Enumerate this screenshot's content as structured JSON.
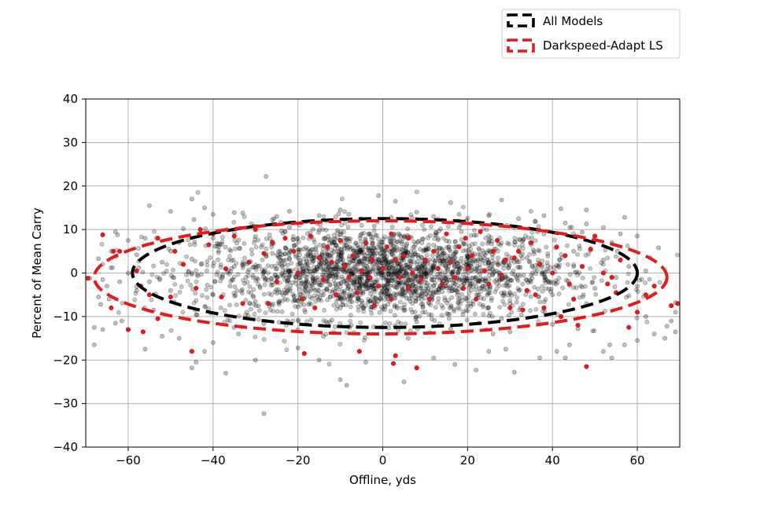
{
  "chart_data": {
    "type": "scatter",
    "xlabel": "Offline, yds",
    "ylabel": "Percent of Mean Carry",
    "xlim": [
      -70,
      70
    ],
    "ylim": [
      -40,
      40
    ],
    "x_ticks": [
      -60,
      -40,
      -20,
      0,
      20,
      40,
      60
    ],
    "x_tick_labels": [
      "−60",
      "−40",
      "−20",
      "0",
      "20",
      "40",
      "60"
    ],
    "y_ticks": [
      -40,
      -30,
      -20,
      -10,
      0,
      10,
      20,
      30,
      40
    ],
    "y_tick_labels": [
      "−40",
      "−30",
      "−20",
      "−10",
      "0",
      "10",
      "20",
      "30",
      "40"
    ],
    "grid": true,
    "legend_position": "top-right, above plot",
    "series": [
      {
        "name": "All Models",
        "color": "#000000",
        "ellipse": {
          "center": [
            0.5,
            0
          ],
          "semi_axis_x": 59.5,
          "semi_axis_y": 12.5
        },
        "point_count_approx": 2500,
        "points": [
          [
            -27.5,
            22.2
          ],
          [
            -28,
            -32.3
          ],
          [
            -8.5,
            -25.8
          ],
          [
            -10,
            -24.5
          ],
          [
            5,
            -25
          ],
          [
            -44,
            -20.5
          ],
          [
            -45,
            -21.8
          ],
          [
            -37,
            -23
          ],
          [
            -30,
            -20
          ],
          [
            -56,
            -17.5
          ],
          [
            -57.5,
            1.2
          ],
          [
            -55,
            15.5
          ],
          [
            -45,
            17
          ],
          [
            -63,
            9.5
          ],
          [
            -68,
            -16.5
          ],
          [
            -66,
            -13
          ],
          [
            -60,
            -13
          ],
          [
            22,
            -22.3
          ],
          [
            31,
            -22.8
          ],
          [
            17,
            -21
          ],
          [
            -1,
            17.8
          ],
          [
            3,
            16.5
          ],
          [
            16,
            16.2
          ],
          [
            28,
            16.8
          ],
          [
            42,
            14.8
          ],
          [
            48,
            14.5
          ],
          [
            57,
            12.8
          ],
          [
            -22,
            14.2
          ],
          [
            -10,
            14.5
          ],
          [
            -68,
            -12.5
          ],
          [
            -61.5,
            -11
          ],
          [
            -63,
            -11.5
          ],
          [
            -66.5,
            -7.2
          ],
          [
            -69,
            -1.2
          ],
          [
            69,
            -6.8
          ],
          [
            69,
            -9
          ],
          [
            69,
            -13.5
          ],
          [
            66.5,
            -15
          ],
          [
            60,
            -15.5
          ],
          [
            57,
            -16.5
          ],
          [
            53.5,
            -16.5
          ],
          [
            52,
            -18
          ],
          [
            54,
            -19.5
          ],
          [
            64,
            -14
          ],
          [
            67,
            -12.2
          ],
          [
            68,
            -11
          ],
          [
            62,
            -10
          ],
          [
            63,
            3.5
          ],
          [
            65,
            5.8
          ],
          [
            60,
            8.5
          ],
          [
            56,
            9
          ],
          [
            55.3,
            5
          ],
          [
            58,
            1.5
          ],
          [
            -62.5,
            8.8
          ],
          [
            -60,
            7.5
          ],
          [
            -50,
            14.2
          ],
          [
            -42,
            15
          ],
          [
            -44.5,
            12.3
          ],
          [
            -40,
            13.5
          ],
          [
            -35,
            13.9
          ],
          [
            -33,
            13.8
          ],
          [
            -25,
            13
          ],
          [
            -15,
            13.2
          ],
          [
            -8,
            13.5
          ],
          [
            8,
            14
          ],
          [
            12,
            13
          ],
          [
            18,
            13.5
          ],
          [
            25,
            13.2
          ],
          [
            32,
            12.5
          ],
          [
            38,
            13.2
          ],
          [
            43,
            11.5
          ],
          [
            48,
            11.3
          ],
          [
            52,
            10.5
          ],
          [
            41,
            -18
          ],
          [
            43,
            -19.5
          ],
          [
            37,
            -19.5
          ],
          [
            29,
            -17.5
          ],
          [
            25,
            -18
          ],
          [
            44,
            -16.5
          ],
          [
            12,
            -19.5
          ],
          [
            -4,
            -20.5
          ],
          [
            -15,
            -20
          ],
          [
            -20,
            -17.2
          ],
          [
            -34,
            -14
          ],
          [
            -40,
            -16
          ],
          [
            -42,
            -18
          ],
          [
            -48,
            -15
          ],
          [
            -52,
            -14.5
          ],
          [
            -64.5,
            -6
          ],
          [
            -67,
            -5.5
          ],
          [
            -65,
            -3
          ],
          [
            -62,
            -2
          ],
          [
            -62.8,
            3.8
          ],
          [
            -64,
            5
          ],
          [
            -67,
            3.3
          ],
          [
            -50,
            5
          ],
          [
            -45,
            3.2
          ],
          [
            -38,
            6.6
          ],
          [
            -30,
            8.4
          ],
          [
            -20,
            8
          ],
          [
            -10,
            7.5
          ],
          [
            -5,
            9
          ],
          [
            5,
            8.5
          ],
          [
            15,
            7.4
          ],
          [
            25,
            7.2
          ],
          [
            35,
            6.5
          ],
          [
            45,
            5
          ],
          [
            -50,
            -4
          ],
          [
            -40,
            -5
          ],
          [
            -30,
            -6.5
          ],
          [
            -20,
            -7.8
          ],
          [
            -10,
            -8
          ],
          [
            0,
            -8.3
          ],
          [
            10,
            -9
          ],
          [
            20,
            -7.6
          ],
          [
            30,
            -7
          ],
          [
            40,
            -5
          ],
          [
            50,
            -3.5
          ],
          [
            -45,
            0
          ],
          [
            -35,
            1.5
          ],
          [
            -25,
            -1
          ],
          [
            -15,
            2.5
          ],
          [
            -5,
            -2.5
          ],
          [
            5,
            3
          ],
          [
            15,
            -1.5
          ],
          [
            25,
            2
          ],
          [
            35,
            -0.5
          ],
          [
            45,
            1.5
          ],
          [
            -40,
            8
          ],
          [
            -32,
            -9
          ],
          [
            -22,
            10.5
          ],
          [
            -12,
            -10.8
          ],
          [
            -2,
            10.8
          ],
          [
            8,
            -11.2
          ],
          [
            18,
            10.5
          ],
          [
            28,
            -10.5
          ],
          [
            38,
            9
          ],
          [
            -55,
            -2
          ],
          [
            -52,
            2.5
          ],
          [
            55,
            -1
          ],
          [
            52,
            3
          ],
          [
            -48,
            7
          ],
          [
            48,
            -7
          ],
          [
            -36,
            -3
          ],
          [
            -26,
            4.5
          ],
          [
            -16,
            -4
          ],
          [
            -6,
            4
          ],
          [
            4,
            -4.5
          ],
          [
            14,
            4.2
          ],
          [
            24,
            -3.8
          ],
          [
            34,
            3.5
          ],
          [
            44,
            -2.8
          ],
          [
            -58,
            4.2
          ],
          [
            -58,
            -4
          ],
          [
            -56,
            8
          ],
          [
            -54,
            -8.5
          ],
          [
            58,
            -5.2
          ],
          [
            60,
            -3
          ],
          [
            62,
            0.5
          ],
          [
            -20,
            -13
          ],
          [
            -14,
            -14.5
          ],
          [
            6,
            -15
          ],
          [
            26,
            -14
          ],
          [
            -26,
            12.3
          ],
          [
            2,
            12.8
          ],
          [
            20,
            12.6
          ],
          [
            36,
            11.8
          ],
          [
            -66,
            -1.5
          ],
          [
            -60,
            0
          ],
          [
            -35,
            -12.5
          ],
          [
            30,
            -13.5
          ],
          [
            46,
            -12.8
          ],
          [
            -47,
            10.2
          ],
          [
            -18,
            11.8
          ],
          [
            10,
            11.9
          ],
          [
            47,
            9.4
          ],
          [
            -8,
            -12.3
          ],
          [
            16,
            -12.8
          ],
          [
            -44,
            -9.6
          ],
          [
            54,
            7
          ],
          [
            -28,
            -11.6
          ],
          [
            40,
            -11.8
          ]
        ]
      },
      {
        "name": "Darkspeed-Adapt LS",
        "color": "#e41a1c",
        "ellipse": {
          "center": [
            -0.5,
            -1.0
          ],
          "semi_axis_x": 67.5,
          "semi_axis_y": 13
        },
        "point_count_approx": 180,
        "points": [
          [
            -66,
            8.8
          ],
          [
            -62,
            5
          ],
          [
            -55,
            -5
          ],
          [
            -53,
            -10.5
          ],
          [
            -53,
            8
          ],
          [
            -58,
            0.5
          ],
          [
            -56.5,
            -13.5
          ],
          [
            -64,
            -8
          ],
          [
            -69.5,
            -1.2
          ],
          [
            -50,
            -5.5
          ],
          [
            -49,
            5
          ],
          [
            -47,
            2
          ],
          [
            -44,
            -3.5
          ],
          [
            -41,
            6.5
          ],
          [
            -40,
            9
          ],
          [
            -38,
            -5.5
          ],
          [
            -35,
            8.5
          ],
          [
            -33,
            -7
          ],
          [
            -31.5,
            2.5
          ],
          [
            -30,
            10
          ],
          [
            -28,
            4.5
          ],
          [
            -27,
            -7
          ],
          [
            -25,
            -2
          ],
          [
            -23,
            8
          ],
          [
            -21,
            5
          ],
          [
            -20,
            0
          ],
          [
            -19,
            -6
          ],
          [
            -17,
            8.5
          ],
          [
            -15,
            3.5
          ],
          [
            -14,
            -1.5
          ],
          [
            -12,
            2.5
          ],
          [
            -11,
            -5
          ],
          [
            -10,
            7.5
          ],
          [
            -9,
            1.5
          ],
          [
            -8,
            -1
          ],
          [
            -7,
            4
          ],
          [
            -6,
            -4.5
          ],
          [
            -5,
            0.5
          ],
          [
            -4,
            7
          ],
          [
            -3,
            -1
          ],
          [
            -2.5,
            3
          ],
          [
            -1,
            -3
          ],
          [
            0,
            1
          ],
          [
            1,
            6
          ],
          [
            2,
            -6
          ],
          [
            2,
            9
          ],
          [
            3,
            3
          ],
          [
            4,
            -1
          ],
          [
            5,
            4
          ],
          [
            6,
            -3.5
          ],
          [
            7,
            0
          ],
          [
            8,
            -21.8
          ],
          [
            9,
            -1.5
          ],
          [
            10,
            3
          ],
          [
            11,
            -6
          ],
          [
            12,
            5
          ],
          [
            13,
            1
          ],
          [
            14,
            -2.5
          ],
          [
            15,
            9
          ],
          [
            16,
            2.5
          ],
          [
            17,
            -1
          ],
          [
            18,
            6
          ],
          [
            19,
            -3.5
          ],
          [
            20,
            1
          ],
          [
            21,
            4
          ],
          [
            22,
            -6
          ],
          [
            23,
            9.5
          ],
          [
            24,
            0.5
          ],
          [
            25,
            -2.5
          ],
          [
            26,
            5
          ],
          [
            27,
            7.5
          ],
          [
            28,
            -0.5
          ],
          [
            29,
            3
          ],
          [
            30,
            -8
          ],
          [
            31,
            3.5
          ],
          [
            32,
            5
          ],
          [
            34,
            -4
          ],
          [
            35,
            7
          ],
          [
            36,
            -5
          ],
          [
            37,
            2
          ],
          [
            38,
            -8
          ],
          [
            40,
            0
          ],
          [
            42,
            -10
          ],
          [
            43,
            4
          ],
          [
            44,
            -2.5
          ],
          [
            45,
            -6
          ],
          [
            46,
            -12
          ],
          [
            47,
            1.5
          ],
          [
            48,
            -21.5
          ],
          [
            49,
            5.5
          ],
          [
            50,
            8.5
          ],
          [
            52,
            0
          ],
          [
            53,
            -2.5
          ],
          [
            55,
            -4.5
          ],
          [
            56,
            3
          ],
          [
            58,
            -12.5
          ],
          [
            60,
            -9
          ],
          [
            62,
            -5
          ],
          [
            64,
            -3
          ],
          [
            68,
            -7.5
          ],
          [
            69.5,
            -7
          ],
          [
            -45,
            -18
          ],
          [
            -18.5,
            -18.5
          ],
          [
            -5.5,
            -18
          ],
          [
            3,
            -19
          ],
          [
            2.5,
            -20.8
          ],
          [
            -63.5,
            5
          ],
          [
            -60,
            -13
          ],
          [
            -57,
            -3
          ],
          [
            -43,
            10
          ],
          [
            -37,
            1
          ],
          [
            -26,
            7
          ],
          [
            -16,
            -8
          ],
          [
            -13,
            6
          ],
          [
            -2,
            -7.5
          ],
          [
            6,
            8
          ],
          [
            19.5,
            8
          ],
          [
            33,
            -8.5
          ],
          [
            41,
            6
          ],
          [
            54,
            -1
          ]
        ]
      }
    ]
  }
}
